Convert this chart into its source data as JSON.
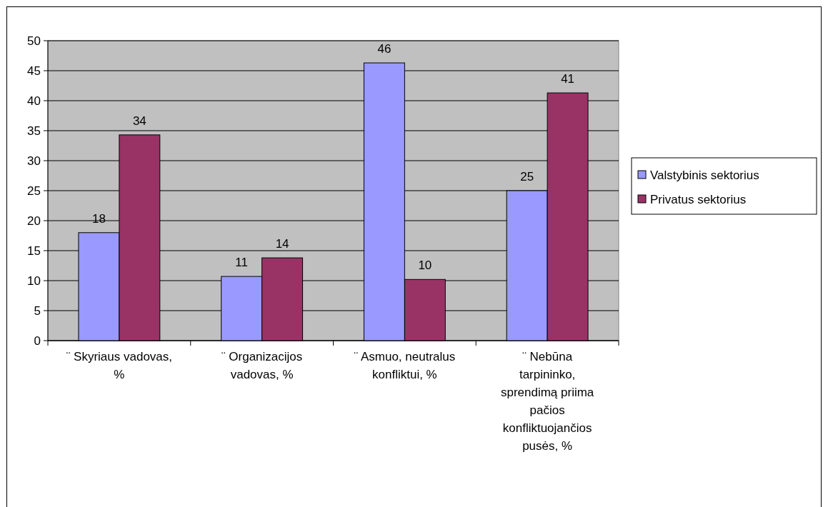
{
  "chart_data": {
    "type": "bar",
    "categories": [
      "¨ Skyriaus vadovas, %",
      "¨ Organizacijos vadovas, %",
      "¨ Asmuo, neutralus konfliktui, %",
      "¨ Nebūna tarpininko, sprendimą priima pačios konfliktuojančios pusės, %"
    ],
    "series": [
      {
        "name": "Valstybinis sektorius",
        "color": "#9999ff",
        "values": [
          18,
          10.7,
          46.3,
          25
        ],
        "value_labels": [
          "18",
          "11",
          "46",
          "25"
        ]
      },
      {
        "name": "Privatus sektorius",
        "color": "#993366",
        "values": [
          34.3,
          13.8,
          10.2,
          41.3
        ],
        "value_labels": [
          "34",
          "14",
          "10",
          "41"
        ]
      }
    ],
    "ylim": [
      0,
      50
    ],
    "yticks": [
      0,
      5,
      10,
      15,
      20,
      25,
      30,
      35,
      40,
      45,
      50
    ],
    "grid": "y",
    "legend": "right"
  }
}
